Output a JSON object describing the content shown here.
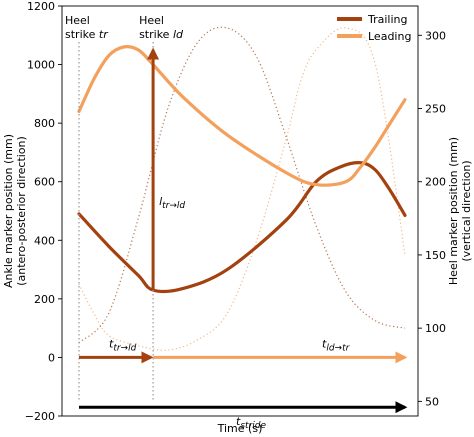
{
  "chart_data": {
    "type": "line",
    "xlabel": "Time (s)",
    "ylabel_left_line1": "Ankle marker position (mm)",
    "ylabel_left_line2": "(antero-posterior direction)",
    "ylabel_right_line1": "Heel marker position (mm)",
    "ylabel_right_line2": "(vertical direction)",
    "ylim_left": [
      -200,
      1200
    ],
    "ylim_right": [
      40,
      320
    ],
    "xlim": [
      0,
      1.13
    ],
    "yticks_left": [
      -200,
      0,
      200,
      400,
      600,
      800,
      1000,
      1200
    ],
    "yticks_right": [
      50,
      100,
      150,
      200,
      250,
      300
    ],
    "colors": {
      "trailing": "#a3410f",
      "leading": "#f3a05c"
    },
    "legend": [
      {
        "name": "Trailing",
        "color": "#a3410f"
      },
      {
        "name": "Leading",
        "color": "#f3a05c"
      }
    ],
    "series": [
      {
        "name": "Trailing",
        "axis": "left",
        "x": [
          0.0,
          0.1,
          0.2,
          0.25,
          0.35,
          0.5,
          0.7,
          0.8,
          0.88,
          0.95,
          1.0,
          1.05,
          1.1
        ],
        "values": [
          490,
          380,
          280,
          230,
          235,
          300,
          470,
          600,
          650,
          665,
          640,
          570,
          485
        ]
      },
      {
        "name": "Leading",
        "axis": "left",
        "x": [
          0.0,
          0.05,
          0.1,
          0.15,
          0.2,
          0.25,
          0.35,
          0.5,
          0.7,
          0.8,
          0.9,
          0.95,
          1.0,
          1.05,
          1.1
        ],
        "values": [
          840,
          950,
          1030,
          1060,
          1050,
          1000,
          890,
          760,
          630,
          590,
          600,
          650,
          720,
          800,
          880
        ]
      },
      {
        "name": "Trailing heel",
        "axis": "right",
        "style": "dotted",
        "x": [
          0.0,
          0.1,
          0.2,
          0.3,
          0.4,
          0.5,
          0.6,
          0.7,
          0.8,
          0.9,
          1.0,
          1.1
        ],
        "values": [
          90,
          110,
          175,
          250,
          295,
          305,
          285,
          230,
          170,
          125,
          105,
          100
        ]
      },
      {
        "name": "Leading heel",
        "axis": "right",
        "style": "dotted",
        "x": [
          0.0,
          0.05,
          0.1,
          0.2,
          0.3,
          0.4,
          0.5,
          0.6,
          0.7,
          0.75,
          0.8,
          0.9,
          1.0,
          1.1
        ],
        "values": [
          130,
          110,
          95,
          88,
          85,
          92,
          110,
          160,
          230,
          270,
          290,
          305,
          280,
          150
        ]
      }
    ],
    "annotations": {
      "heel_strike_tr": {
        "line1": "Heel",
        "line2": "strike ",
        "var": "tr",
        "x": 0.0
      },
      "heel_strike_ld": {
        "line1": "Heel",
        "line2": "strike ",
        "var": "ld",
        "x": 0.25
      },
      "l_tr_ld": {
        "main": "l",
        "sub": "tr→ld"
      },
      "t_tr_ld": {
        "main": "t",
        "sub": "tr→ld"
      },
      "t_ld_tr": {
        "main": "t",
        "sub": "ld→tr"
      },
      "t_stride": {
        "main": "t",
        "sub": "stride"
      }
    }
  }
}
